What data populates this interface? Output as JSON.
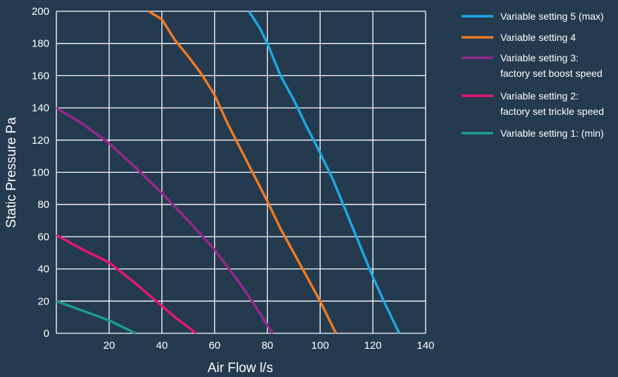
{
  "chart_data": {
    "type": "line",
    "xlabel": "Air Flow l/s",
    "ylabel": "Static Pressure Pa",
    "xlim": [
      0,
      140
    ],
    "ylim": [
      0,
      200
    ],
    "x_ticks": [
      "20",
      "40",
      "60",
      "80",
      "100",
      "120",
      "140"
    ],
    "y_ticks": [
      "0",
      "20",
      "40",
      "60",
      "80",
      "100",
      "120",
      "140",
      "160",
      "180",
      "200"
    ],
    "grid": true,
    "legend_position": "right",
    "series": [
      {
        "name": "Variable setting 5 (max)",
        "color": "#1ba8e6",
        "points": [
          [
            73,
            200
          ],
          [
            77,
            190
          ],
          [
            80,
            180
          ],
          [
            85,
            160
          ],
          [
            90,
            145
          ],
          [
            95,
            128
          ],
          [
            100,
            112
          ],
          [
            105,
            95
          ],
          [
            110,
            75
          ],
          [
            115,
            55
          ],
          [
            120,
            35
          ],
          [
            125,
            17
          ],
          [
            130,
            0
          ]
        ]
      },
      {
        "name": "Variable setting 4",
        "color": "#ef7a23",
        "points": [
          [
            35,
            200
          ],
          [
            40,
            195
          ],
          [
            45,
            182
          ],
          [
            50,
            172
          ],
          [
            55,
            161
          ],
          [
            60,
            148
          ],
          [
            65,
            130
          ],
          [
            70,
            114
          ],
          [
            75,
            98
          ],
          [
            80,
            82
          ],
          [
            85,
            65
          ],
          [
            90,
            50
          ],
          [
            95,
            35
          ],
          [
            100,
            20
          ],
          [
            106,
            0
          ]
        ]
      },
      {
        "name": "Variable setting 3:",
        "name_line2": "factory set boost speed",
        "color": "#94288e",
        "points": [
          [
            0,
            140
          ],
          [
            10,
            130
          ],
          [
            20,
            118
          ],
          [
            30,
            103
          ],
          [
            40,
            87
          ],
          [
            50,
            70
          ],
          [
            60,
            52
          ],
          [
            70,
            30
          ],
          [
            75,
            18
          ],
          [
            80,
            5
          ],
          [
            82,
            0
          ]
        ]
      },
      {
        "name": "Variable setting 2:",
        "name_line2": "factory set trickle speed",
        "color": "#e6176f",
        "points": [
          [
            0,
            61
          ],
          [
            10,
            52
          ],
          [
            20,
            44
          ],
          [
            30,
            31
          ],
          [
            40,
            17
          ],
          [
            45,
            10
          ],
          [
            53,
            0
          ]
        ]
      },
      {
        "name": "Variable setting 1: (min)",
        "color": "#1b9a90",
        "points": [
          [
            0,
            20
          ],
          [
            10,
            14
          ],
          [
            20,
            8
          ],
          [
            30,
            0
          ]
        ]
      }
    ]
  }
}
